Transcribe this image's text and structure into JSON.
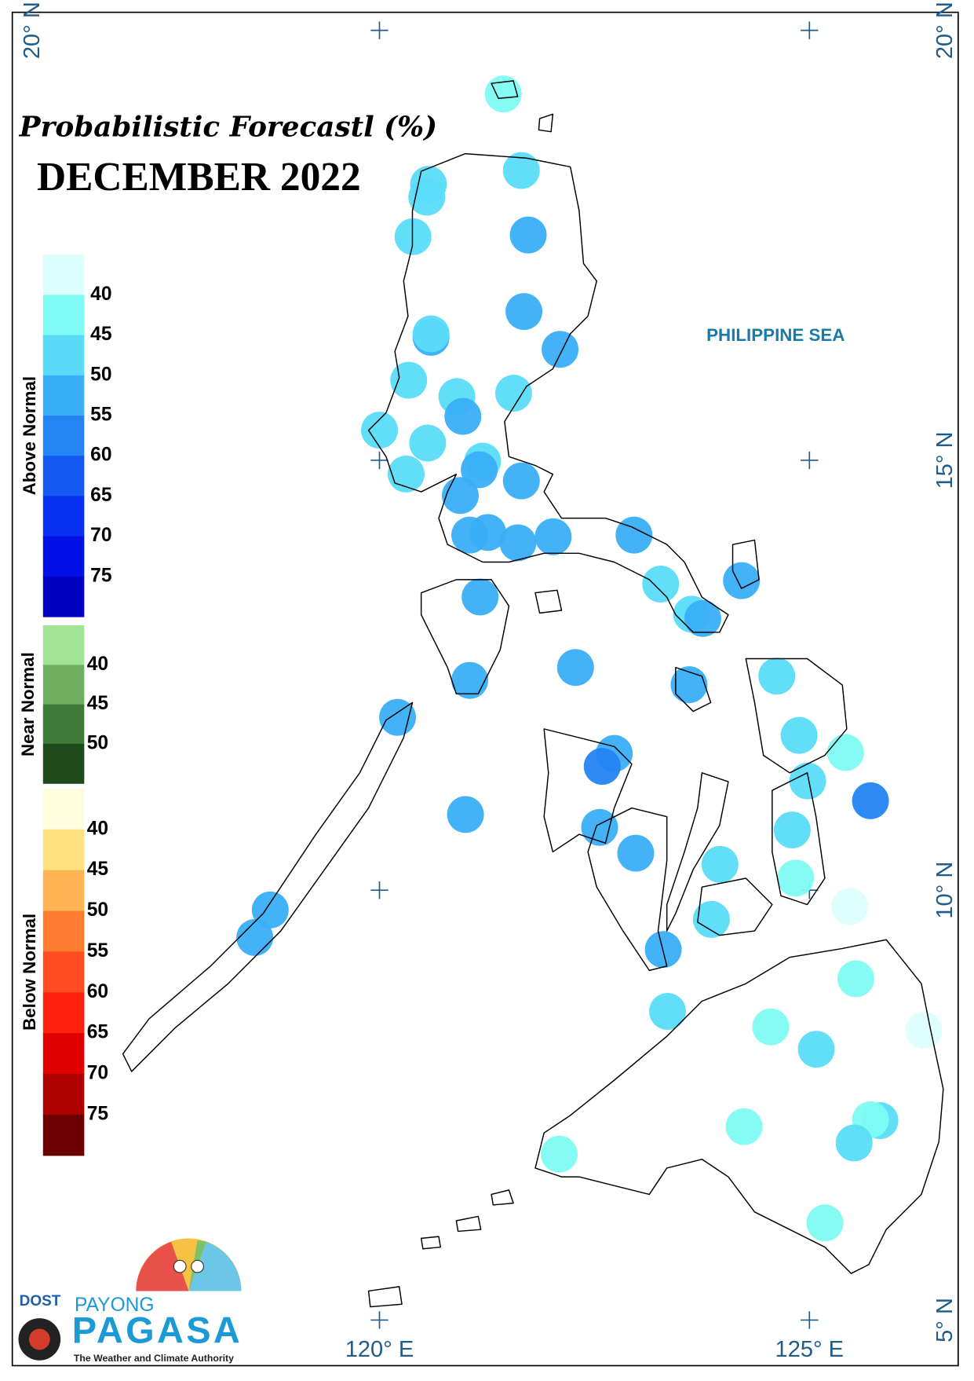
{
  "header": {
    "title": "Probabilistic Forecastl (%)",
    "subtitle": "DECEMBER 2022"
  },
  "map": {
    "xlim": [
      115.73,
      126.73
    ],
    "ylim": [
      4.47,
      20.21
    ],
    "xticks": [
      {
        "value": 120,
        "label": "120° E"
      },
      {
        "value": 125,
        "label": "125° E"
      }
    ],
    "yticks": [
      {
        "value": 5,
        "label": "5° N"
      },
      {
        "value": 10,
        "label": "10° N"
      },
      {
        "value": 15,
        "label": "15° N"
      },
      {
        "value": 20,
        "label": "20° N"
      }
    ],
    "sea_label": "PHILIPPINE SEA",
    "stations": {
      "lon": [
        121.44,
        121.65,
        120.57,
        120.55,
        121.73,
        120.39,
        121.68,
        120.6,
        120.6,
        122.1,
        120.34,
        120.9,
        121.56,
        120.97,
        120.0,
        120.56,
        121.2,
        121.16,
        120.31,
        121.65,
        120.94,
        121.05,
        121.26,
        121.61,
        122.02,
        122.96,
        124.21,
        123.27,
        123.63,
        123.76,
        121.17,
        122.28,
        121.05,
        123.6,
        124.62,
        120.21,
        124.88,
        125.42,
        122.73,
        122.59,
        124.98,
        125.71,
        121.0,
        122.56,
        124.8,
        122.98,
        123.96,
        124.84,
        125.47,
        118.73,
        118.55,
        123.86,
        123.3,
        125.54,
        123.35,
        124.55,
        126.33,
        125.08,
        124.24,
        125.82,
        125.71,
        125.52,
        122.09,
        125.18
      ],
      "lat": [
        19.26,
        18.37,
        18.21,
        18.06,
        17.62,
        17.6,
        16.73,
        16.43,
        16.47,
        16.29,
        15.93,
        15.74,
        15.78,
        15.51,
        15.35,
        15.2,
        14.99,
        14.89,
        14.84,
        14.76,
        14.59,
        14.13,
        14.16,
        14.04,
        14.11,
        14.13,
        13.6,
        13.56,
        13.21,
        13.16,
        13.41,
        12.59,
        12.44,
        12.39,
        12.49,
        12.01,
        11.8,
        11.6,
        11.59,
        11.44,
        11.27,
        11.04,
        10.88,
        10.73,
        10.7,
        10.43,
        10.3,
        10.14,
        9.81,
        9.77,
        9.45,
        9.66,
        9.31,
        8.97,
        8.59,
        8.41,
        8.37,
        8.15,
        7.25,
        7.32,
        7.33,
        7.06,
        6.93,
        6.13
      ],
      "values": [
        42,
        47,
        47,
        47,
        53,
        47,
        53,
        53,
        47,
        54,
        47,
        48,
        47,
        53,
        47,
        48,
        45,
        53,
        48,
        54,
        54,
        53,
        53,
        53,
        54,
        54,
        54,
        47,
        49,
        54,
        54,
        54,
        54,
        54,
        47,
        54,
        48,
        42,
        54,
        57,
        49,
        57,
        54,
        54,
        48,
        54,
        49,
        42,
        38,
        54,
        54,
        49,
        54,
        42,
        49,
        42,
        38,
        49,
        42,
        47,
        42,
        49,
        42,
        42
      ]
    }
  },
  "legend": {
    "groups": [
      {
        "title": "Above Normal",
        "labels": [
          40,
          45,
          50,
          55,
          60,
          65,
          70,
          75
        ],
        "colors": [
          "#dcfffd",
          "#80fbf3",
          "#5adcf8",
          "#3aaef7",
          "#2584f4",
          "#1359f2",
          "#0730f0",
          "#0010e6",
          "#0000c0"
        ]
      },
      {
        "title": "Near Normal",
        "labels": [
          40,
          45,
          50
        ],
        "colors": [
          "#a2e496",
          "#70b060",
          "#3f7a38",
          "#1e4a1c"
        ]
      },
      {
        "title": "Below Normal",
        "labels": [
          40,
          45,
          50,
          55,
          60,
          65,
          70,
          75
        ],
        "colors": [
          "#fffde0",
          "#ffe180",
          "#ffb352",
          "#ff7c30",
          "#ff4c20",
          "#ff200e",
          "#e00000",
          "#ae0000",
          "#6c0000"
        ]
      }
    ]
  },
  "logo": {
    "dost": "DOST",
    "payong": "PAYONG",
    "pagasa": "PAGASA",
    "tagline": "The Weather and Climate Authority"
  }
}
